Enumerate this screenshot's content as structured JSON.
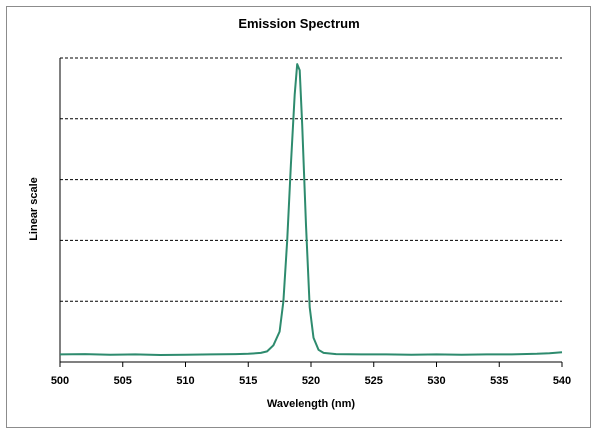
{
  "chart_data": {
    "type": "line",
    "title": "Emission Spectrum",
    "xlabel": "Wavelength (nm)",
    "ylabel": "Linear scale",
    "xlim": [
      500,
      540
    ],
    "ylim": [
      0,
      100
    ],
    "x_ticks": [
      "500",
      "505",
      "510",
      "515",
      "520",
      "525",
      "530",
      "535",
      "540"
    ],
    "grid": "horizontal-dashed",
    "series": [
      {
        "color": "#2e8b6e",
        "x": [
          500,
          502,
          504,
          506,
          508,
          510,
          512,
          514,
          515,
          516,
          516.5,
          517,
          517.5,
          517.8,
          518.1,
          518.4,
          518.7,
          518.9,
          519.1,
          519.3,
          519.6,
          519.9,
          520.2,
          520.6,
          521,
          522,
          524,
          526,
          528,
          530,
          532,
          534,
          536,
          538,
          539,
          540
        ],
        "y": [
          2.5,
          2.6,
          2.4,
          2.5,
          2.3,
          2.4,
          2.5,
          2.6,
          2.7,
          3.0,
          3.5,
          5.5,
          10,
          20,
          40,
          65,
          88,
          98,
          96,
          78,
          45,
          18,
          8,
          4,
          3.0,
          2.6,
          2.5,
          2.5,
          2.4,
          2.5,
          2.4,
          2.5,
          2.5,
          2.7,
          2.9,
          3.2
        ]
      }
    ]
  }
}
